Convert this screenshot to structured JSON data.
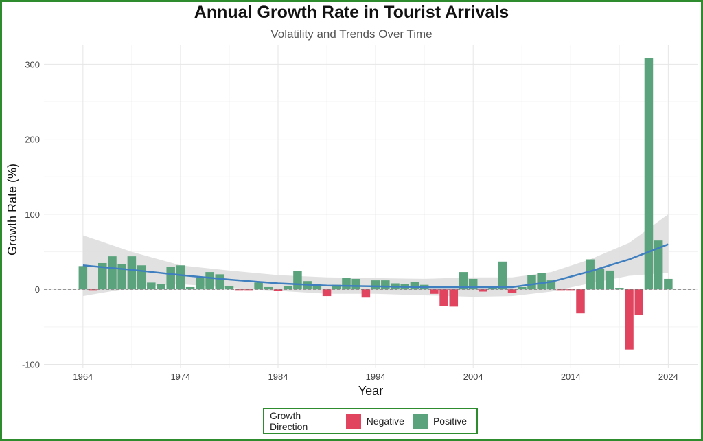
{
  "colors": {
    "positive": "#5aa37c",
    "negative": "#e0445f",
    "trend": "#3f7fbf",
    "band": "#dcdcdc",
    "frame": "#2e8b2e"
  },
  "chart_data": {
    "type": "bar",
    "title": "Annual Growth Rate in Tourist Arrivals",
    "subtitle": "Volatility and Trends Over Time",
    "xlabel": "Year",
    "ylabel": "Growth Rate (%)",
    "xlim": [
      1960,
      2027
    ],
    "ylim": [
      -105,
      325
    ],
    "x_ticks": [
      1964,
      1974,
      1984,
      1994,
      2004,
      2014,
      2024
    ],
    "y_ticks": [
      -100,
      0,
      100,
      200,
      300
    ],
    "y_tick_labels": [
      "-100",
      "0",
      "100",
      "200",
      "300"
    ],
    "grid": true,
    "reference_line": 0,
    "legend": {
      "title": "Growth Direction",
      "position": "bottom",
      "entries": [
        "Negative",
        "Positive"
      ]
    },
    "x": [
      1964,
      1965,
      1966,
      1967,
      1968,
      1969,
      1970,
      1971,
      1972,
      1973,
      1974,
      1975,
      1976,
      1977,
      1978,
      1979,
      1980,
      1981,
      1982,
      1983,
      1984,
      1985,
      1986,
      1987,
      1988,
      1989,
      1990,
      1991,
      1992,
      1993,
      1994,
      1995,
      1996,
      1997,
      1998,
      1999,
      2000,
      2001,
      2002,
      2003,
      2004,
      2005,
      2006,
      2007,
      2008,
      2009,
      2010,
      2011,
      2012,
      2013,
      2014,
      2015,
      2016,
      2017,
      2018,
      2019,
      2020,
      2021,
      2022,
      2023,
      2024
    ],
    "values": [
      31,
      -1,
      35,
      44,
      34,
      44,
      32,
      9,
      7,
      30,
      32,
      3,
      15,
      23,
      20,
      4,
      -1,
      -1,
      9,
      3,
      -2,
      4,
      24,
      11,
      7,
      -9,
      6,
      15,
      14,
      -11,
      12,
      12,
      8,
      7,
      10,
      6,
      -6,
      -22,
      -23,
      23,
      14,
      -3,
      3,
      37,
      -5,
      3,
      19,
      22,
      12,
      -1,
      -1,
      -32,
      40,
      27,
      25,
      2,
      -80,
      -34,
      308,
      65,
      14
    ],
    "trend": {
      "name": "smoothed trend",
      "x": [
        1964,
        1969,
        1974,
        1979,
        1984,
        1989,
        1994,
        1999,
        2004,
        2008,
        2012,
        2016,
        2020,
        2024
      ],
      "y": [
        32,
        26,
        19,
        13,
        8,
        5,
        4,
        3,
        3,
        3,
        10,
        24,
        40,
        60
      ],
      "lower": [
        -9,
        2,
        7,
        2,
        -2,
        -6,
        -6,
        -8,
        -10,
        -9,
        -3,
        8,
        18,
        22
      ],
      "upper": [
        72,
        50,
        32,
        25,
        19,
        16,
        15,
        14,
        16,
        16,
        23,
        40,
        62,
        100
      ]
    }
  },
  "legend": {
    "title": "Growth Direction",
    "negative_label": "Negative",
    "positive_label": "Positive"
  }
}
